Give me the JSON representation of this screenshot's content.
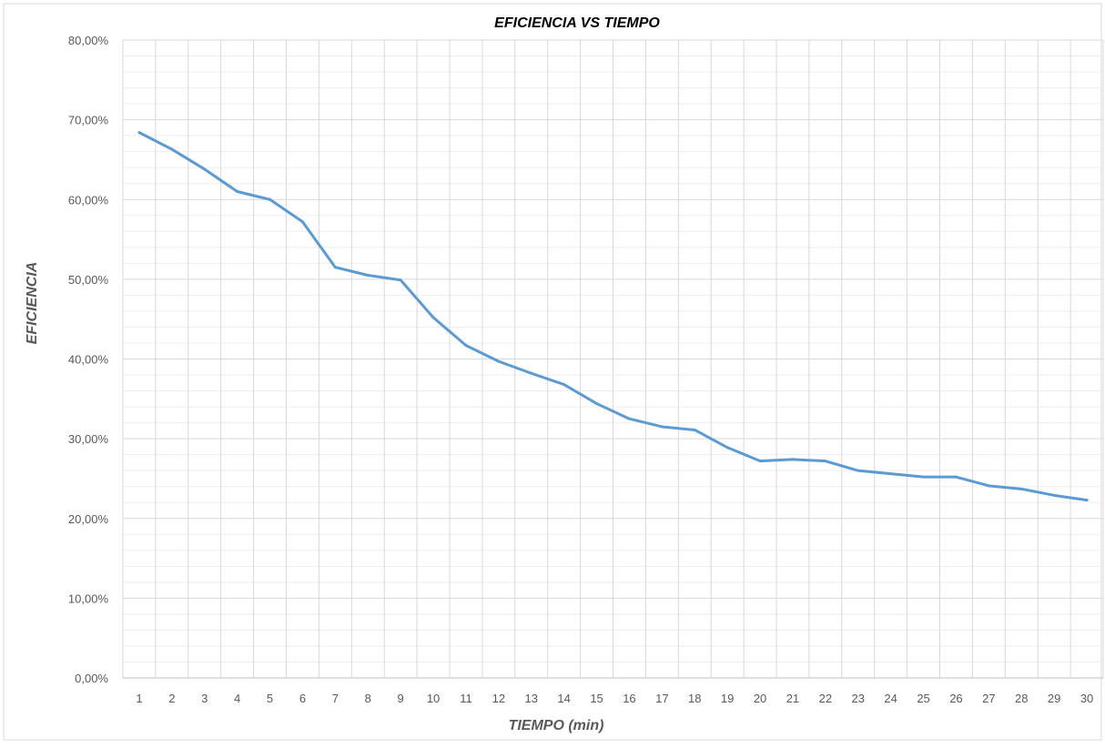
{
  "chart_data": {
    "type": "line",
    "title": "EFICIENCIA VS TIEMPO",
    "xlabel": "TIEMPO (min)",
    "ylabel": "EFICIENCIA",
    "categories": [
      "1",
      "2",
      "3",
      "4",
      "5",
      "6",
      "7",
      "8",
      "9",
      "10",
      "11",
      "12",
      "13",
      "14",
      "15",
      "16",
      "17",
      "18",
      "19",
      "20",
      "21",
      "22",
      "23",
      "24",
      "25",
      "26",
      "27",
      "28",
      "29",
      "30"
    ],
    "y_ticks": [
      "0,00%",
      "10,00%",
      "20,00%",
      "30,00%",
      "40,00%",
      "50,00%",
      "60,00%",
      "70,00%",
      "80,00%"
    ],
    "ylim": [
      0,
      80
    ],
    "grid": true,
    "legend": "none",
    "series": [
      {
        "color": "#5B9BD5",
        "values": [
          68.4,
          66.3,
          63.8,
          61.0,
          60.0,
          57.2,
          51.5,
          50.5,
          49.9,
          45.2,
          41.7,
          39.7,
          38.2,
          36.8,
          34.4,
          32.5,
          31.5,
          31.1,
          28.9,
          27.2,
          27.4,
          27.2,
          26.0,
          25.6,
          25.2,
          25.2,
          24.1,
          23.7,
          22.9,
          22.3
        ]
      }
    ]
  }
}
